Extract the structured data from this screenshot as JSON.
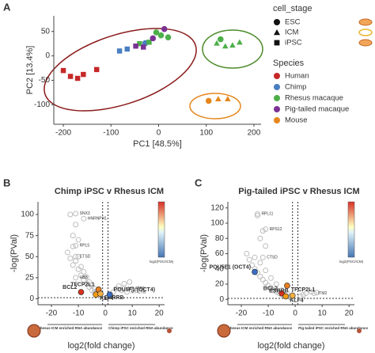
{
  "chart_data": [
    {
      "type": "scatter",
      "panel_label": "A",
      "xlabel": "PC1 [48.5%]",
      "ylabel": "PC2 [13.4%]",
      "xlim": [
        -220,
        215
      ],
      "xticks": [
        -200,
        -100,
        0,
        100,
        200
      ],
      "ylim": [
        -140,
        82
      ],
      "yticks": [
        -100,
        -50,
        0,
        50
      ],
      "marker_legend": {
        "title": "cell_stage",
        "items": [
          {
            "label": "ESC",
            "marker": "circle"
          },
          {
            "label": "ICM",
            "marker": "triangle"
          },
          {
            "label": "iPSC",
            "marker": "square"
          }
        ]
      },
      "legend_title": "Species",
      "series": [
        {
          "name": "Human",
          "color": "#c62828",
          "x": [
            -200,
            -185,
            -170,
            -158,
            -130
          ],
          "values": [
            -30,
            -42,
            -46,
            -38,
            -28
          ],
          "marker": [
            "square",
            "square",
            "square",
            "square",
            "square"
          ]
        },
        {
          "name": "Chimp",
          "color": "#4a7fc1",
          "x": [
            -82,
            -66,
            -28
          ],
          "values": [
            10,
            14,
            26
          ],
          "marker": [
            "square",
            "square",
            "circle"
          ]
        },
        {
          "name": "Rhesus macaque",
          "color": "#4daf4a",
          "x": [
            -40,
            -20,
            5,
            20,
            -5,
            130,
            122,
            140,
            155,
            170
          ],
          "values": [
            25,
            28,
            42,
            38,
            48,
            34,
            26,
            20,
            22,
            28
          ],
          "marker": [
            "square",
            "square",
            "circle",
            "circle",
            "circle",
            "circle",
            "triangle",
            "triangle",
            "triangle",
            "triangle"
          ]
        },
        {
          "name": "Pig-tailed macaque",
          "color": "#7b3294",
          "x": [
            -48,
            -32,
            -12,
            12
          ],
          "values": [
            20,
            18,
            36,
            55
          ],
          "marker": [
            "square",
            "square",
            "circle",
            "circle"
          ]
        },
        {
          "name": "Mouse",
          "color": "#e6871d",
          "x": [
            105,
            125,
            145
          ],
          "values": [
            -92,
            -88,
            -88
          ],
          "marker": [
            "circle",
            "triangle",
            "triangle"
          ]
        }
      ]
    },
    {
      "type": "volcano",
      "panel_label": "B",
      "title": "Chimp iPSC v Rhesus ICM",
      "xlabel": "log2(fold change)",
      "ylabel": "-log(PVal)",
      "xlim": [
        -25,
        22
      ],
      "xticks": [
        -20,
        -10,
        0,
        10,
        20
      ],
      "ylim": [
        -7,
        115
      ],
      "yticks": [
        0,
        25,
        50,
        75,
        100
      ],
      "thresholds": {
        "x": [
          -1,
          1
        ],
        "y": 1.3
      },
      "point_color": "#bdbdbd",
      "points": {
        "x": [
          -14,
          -13,
          -12,
          -12,
          -11,
          -10,
          -10,
          -9,
          -9,
          -8,
          -8,
          -7,
          -7,
          -6,
          -6,
          -5,
          -5,
          -4,
          -4,
          -3,
          -3,
          -2,
          -2,
          2,
          3,
          4,
          5,
          6,
          7,
          9,
          -12,
          -11,
          -13,
          -10
        ],
        "values": [
          55,
          48,
          62,
          40,
          45,
          35,
          50,
          28,
          38,
          22,
          32,
          18,
          26,
          14,
          20,
          10,
          16,
          8,
          12,
          5,
          9,
          4,
          6,
          5,
          8,
          12,
          15,
          10,
          18,
          20,
          75,
          88,
          100,
          70
        ]
      },
      "labels": [
        {
          "label": "SNX3",
          "x": -11,
          "y": 101
        },
        {
          "label": "HNRNPH1",
          "x": -8,
          "y": 95
        },
        {
          "label": "RPL5",
          "x": -11,
          "y": 63
        },
        {
          "label": "CTSD",
          "x": -11,
          "y": 50
        },
        {
          "label": "UBB",
          "x": -11,
          "y": 25
        },
        {
          "label": "MT-ATP8",
          "x": 7,
          "y": 12
        },
        {
          "label": "MT-CYB",
          "x": 8,
          "y": 8
        }
      ],
      "highlights": [
        {
          "label": "BCL2",
          "x": -9,
          "y": 8,
          "color": "#d7301f"
        },
        {
          "label": "KLF4",
          "x": -3.5,
          "y": 5,
          "color": "#f39c12"
        },
        {
          "label": "TFCP2L1",
          "x": -2.5,
          "y": 11,
          "color": "#e67e22"
        },
        {
          "label": "ESRRB",
          "x": -1.8,
          "y": 6,
          "color": "#f5b041"
        },
        {
          "label": "POU5F1 (OCT4)",
          "x": 1.6,
          "y": 5,
          "color": "#3a6fc4"
        }
      ],
      "colorbar_title": "log2(PSC/ICM)",
      "annotations": {
        "left": "Rhesus ICM enriched RNA abundance",
        "right": "Chimp iPSC enriched RNA abundance"
      }
    },
    {
      "type": "volcano",
      "panel_label": "C",
      "title": "Pig-tailed iPSC v Rhesus ICM",
      "xlabel": "log2(fold change)",
      "ylabel": "-log(PVal)",
      "xlim": [
        -25,
        22
      ],
      "xticks": [
        -20,
        -10,
        0,
        10,
        20
      ],
      "ylim": [
        -7,
        128
      ],
      "yticks": [
        0,
        20,
        40,
        60,
        80,
        100,
        120
      ],
      "thresholds": {
        "x": [
          -1,
          1
        ],
        "y": 1.3
      },
      "point_color": "#bdbdbd",
      "points": {
        "x": [
          -18,
          -17,
          -16,
          -15,
          -15,
          -14,
          -13,
          -13,
          -12,
          -11,
          -11,
          -10,
          -9,
          -9,
          -8,
          -7,
          -7,
          -6,
          -5,
          -5,
          -4,
          -3,
          -3,
          -2,
          2,
          3,
          4,
          6,
          8,
          -14,
          -12,
          -13,
          -11
        ],
        "values": [
          60,
          52,
          45,
          40,
          55,
          35,
          30,
          48,
          26,
          22,
          38,
          18,
          15,
          28,
          12,
          10,
          20,
          8,
          6,
          12,
          5,
          4,
          8,
          3,
          4,
          6,
          8,
          10,
          9,
          110,
          90,
          80,
          70
        ]
      },
      "labels": [
        {
          "label": "RPL11",
          "x": -14,
          "y": 112
        },
        {
          "label": "RPS12",
          "x": -11,
          "y": 92
        },
        {
          "label": "CTSD",
          "x": -12,
          "y": 55
        },
        {
          "label": "ITM2",
          "x": 7,
          "y": 8
        }
      ],
      "highlights": [
        {
          "label": "POU5F1 (OCT4)",
          "x": -15,
          "y": 36,
          "color": "#3a6fc4"
        },
        {
          "label": "TFCP2L1",
          "x": -3,
          "y": 18,
          "color": "#e67e22"
        },
        {
          "label": "BCL2",
          "x": -5,
          "y": 8,
          "color": "#d7301f"
        },
        {
          "label": "KLF4",
          "x": -3.5,
          "y": 4,
          "color": "#f39c12"
        },
        {
          "label": "ESRRB",
          "x": -1,
          "y": 5,
          "color": "#f5b041"
        }
      ],
      "colorbar_title": "log2(PSC/ICM)",
      "annotations": {
        "left": "Rhesus ICM enriched RNA abundance",
        "right": "Pig-tailed iPSC enriched RNA abundance"
      }
    }
  ]
}
